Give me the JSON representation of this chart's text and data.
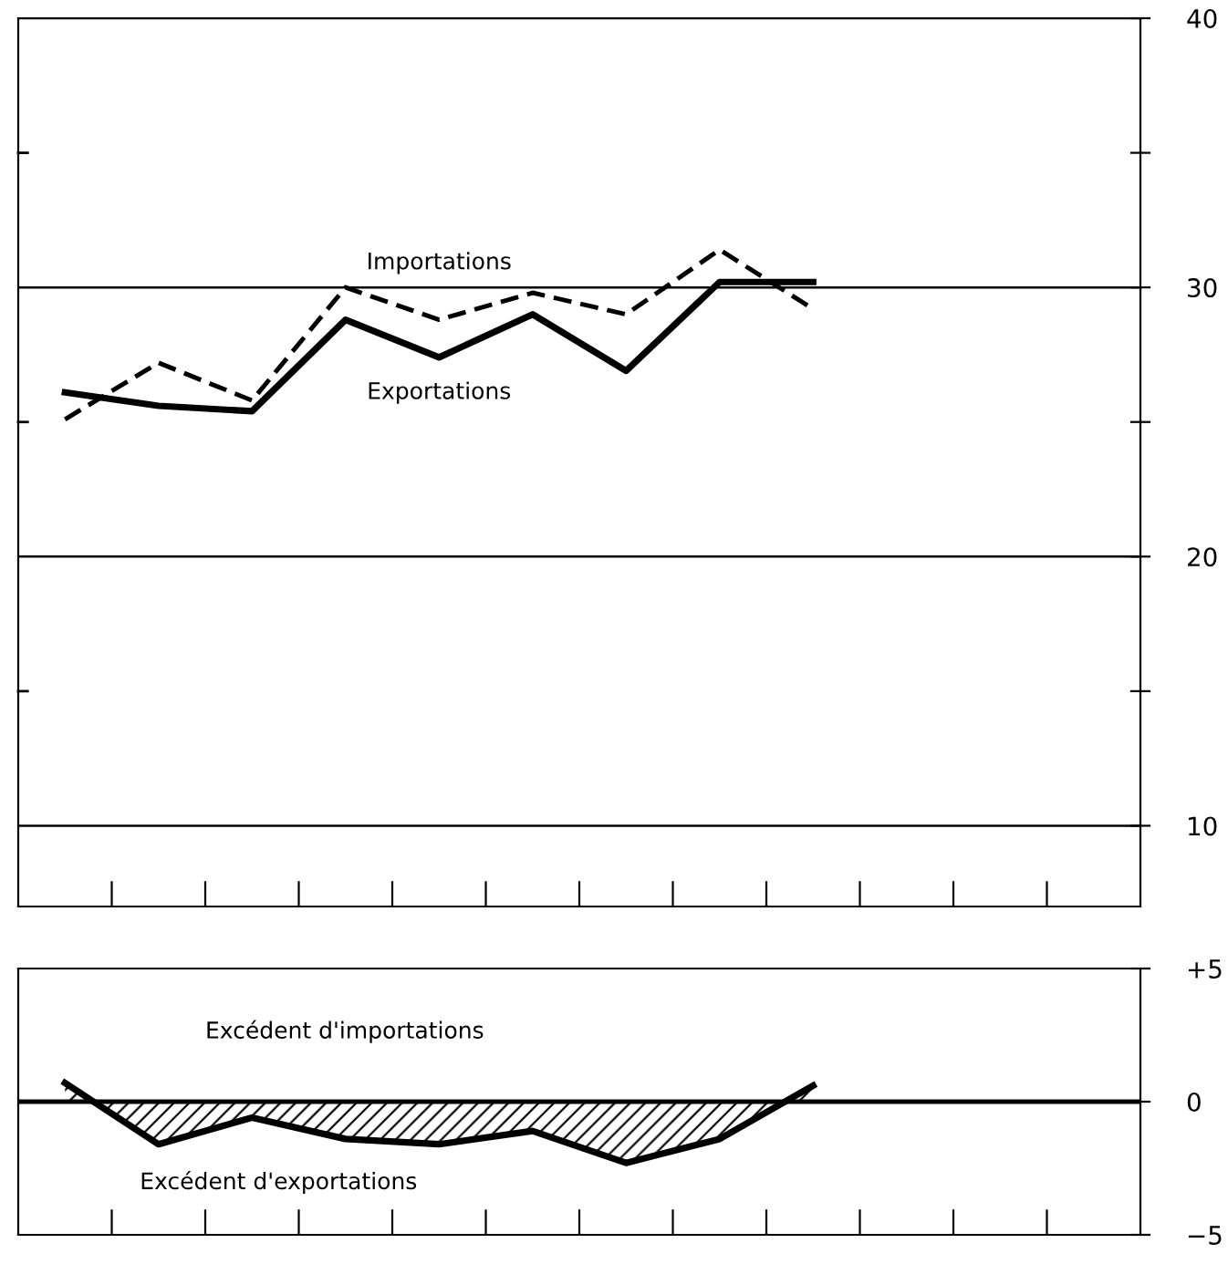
{
  "chart_data": [
    {
      "type": "line",
      "categories": [
        null,
        null,
        null,
        null,
        null,
        null,
        null,
        null,
        null,
        null,
        null,
        null
      ],
      "ylim": [
        7,
        40
      ],
      "yticks": [
        {
          "value": 10,
          "label": "10"
        },
        {
          "value": 15,
          "label": null
        },
        {
          "value": 20,
          "label": "20"
        },
        {
          "value": 25,
          "label": null
        },
        {
          "value": 30,
          "label": "30"
        },
        {
          "value": 35,
          "label": null
        },
        {
          "value": 40,
          "label": "40"
        }
      ],
      "grid": "y",
      "series": [
        {
          "name": "Importations",
          "color": "#000000",
          "line_style": "dashed",
          "values": [
            25.1,
            27.2,
            25.8,
            30.0,
            28.8,
            29.8,
            29.0,
            31.4,
            29.2,
            null,
            null,
            null
          ]
        },
        {
          "name": "Exportations",
          "color": "#000000",
          "line_style": "solid",
          "values": [
            26.1,
            25.6,
            25.4,
            28.8,
            27.4,
            29.0,
            26.9,
            30.2,
            30.2,
            null,
            null,
            null
          ]
        }
      ]
    },
    {
      "type": "area",
      "categories": [
        null,
        null,
        null,
        null,
        null,
        null,
        null,
        null,
        null,
        null,
        null,
        null
      ],
      "ylim": [
        -5,
        5
      ],
      "yticks": [
        {
          "value": -5,
          "label": "−5"
        },
        {
          "value": 0,
          "label": "0"
        },
        {
          "value": 5,
          "label": "+5"
        }
      ],
      "ref_lines": [
        {
          "axis": "y",
          "value": 0,
          "label": null
        }
      ],
      "annotations": [
        "Excédent d'importations",
        "Excédent d'exportations"
      ],
      "series": [
        {
          "color": "#000000",
          "values": [
            0.7,
            -1.6,
            -0.6,
            -1.4,
            -1.6,
            -1.1,
            -2.3,
            -1.4,
            0.6,
            null,
            null,
            null
          ]
        }
      ]
    }
  ]
}
